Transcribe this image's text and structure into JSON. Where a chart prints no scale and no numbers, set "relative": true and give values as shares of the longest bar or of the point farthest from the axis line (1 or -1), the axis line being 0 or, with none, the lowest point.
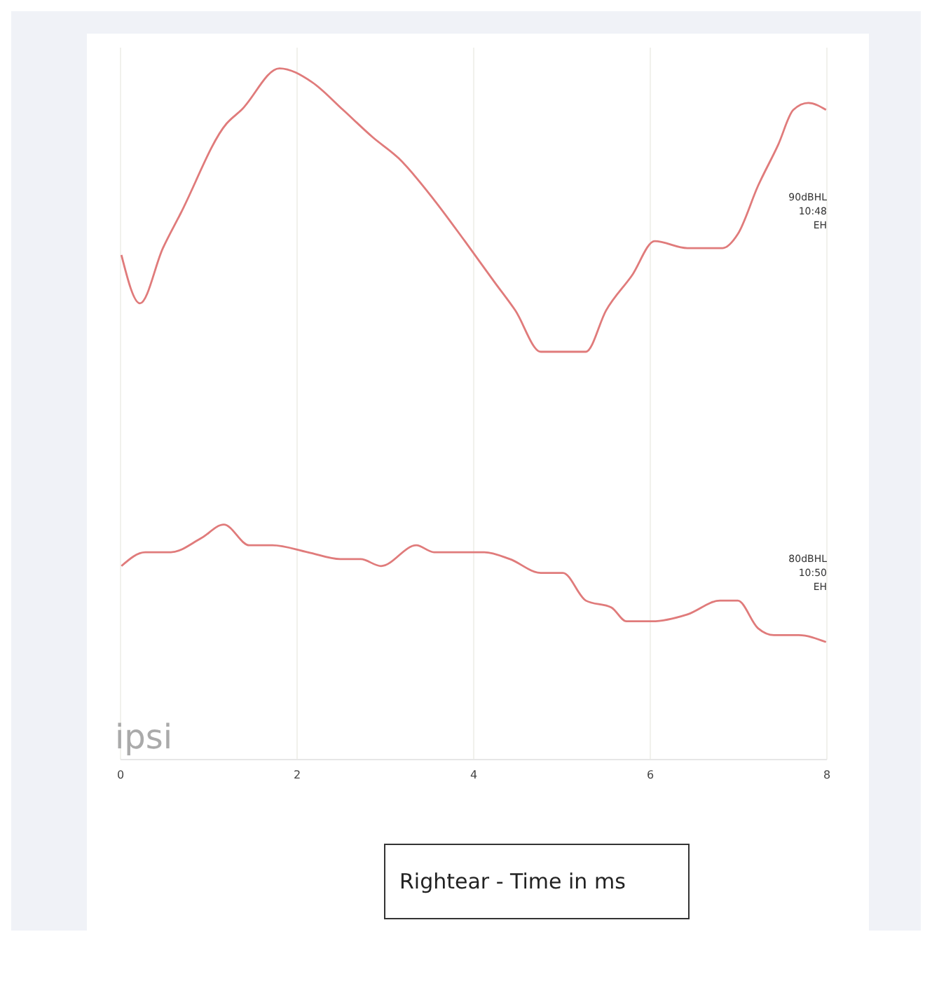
{
  "chart_data": {
    "type": "line",
    "relative": true,
    "xlabel": "Rightear - Time in ms",
    "xlim": [
      0,
      8
    ],
    "xticks": [
      0,
      2,
      4,
      6,
      8
    ],
    "grid": "x",
    "marker": "none",
    "line_style": "solid",
    "series": [
      {
        "color": "#e07b7b",
        "x": [
          0.01,
          0.22,
          0.48,
          0.68,
          1.2,
          1.37,
          1.8,
          2.17,
          2.52,
          2.86,
          3.15,
          3.55,
          3.9,
          4.24,
          4.47,
          4.76,
          5.1,
          5.27,
          5.5,
          5.79,
          6.05,
          6.42,
          6.82,
          6.99,
          7.22,
          7.45,
          7.62,
          7.79,
          7.99
        ],
        "values": [
          0.73,
          0.66,
          0.74,
          0.79,
          0.92,
          0.94,
          1,
          0.98,
          0.94,
          0.9,
          0.87,
          0.81,
          0.75,
          0.69,
          0.65,
          0.59,
          0.59,
          0.59,
          0.65,
          0.7,
          0.75,
          0.74,
          0.74,
          0.76,
          0.83,
          0.89,
          0.94,
          0.95,
          0.94
        ]
      },
      {
        "color": "#e07b7b",
        "x": [
          0.01,
          0.28,
          0.57,
          0.91,
          1.17,
          1.46,
          1.72,
          2.12,
          2.49,
          2.72,
          2.95,
          3.35,
          3.55,
          3.84,
          4.12,
          4.41,
          4.76,
          5.01,
          5.27,
          5.56,
          5.73,
          6.02,
          6.42,
          6.79,
          6.99,
          7.22,
          7.4,
          7.68,
          7.99
        ],
        "values": [
          0.28,
          0.3,
          0.3,
          0.32,
          0.34,
          0.31,
          0.31,
          0.3,
          0.29,
          0.29,
          0.28,
          0.31,
          0.3,
          0.3,
          0.3,
          0.29,
          0.27,
          0.27,
          0.23,
          0.22,
          0.2,
          0.2,
          0.21,
          0.23,
          0.23,
          0.19,
          0.18,
          0.18,
          0.17
        ]
      }
    ],
    "annotations": [
      "90dBHL\n10:48\nEH",
      "80dBHL\n10:50\nEH",
      "ipsi"
    ]
  }
}
